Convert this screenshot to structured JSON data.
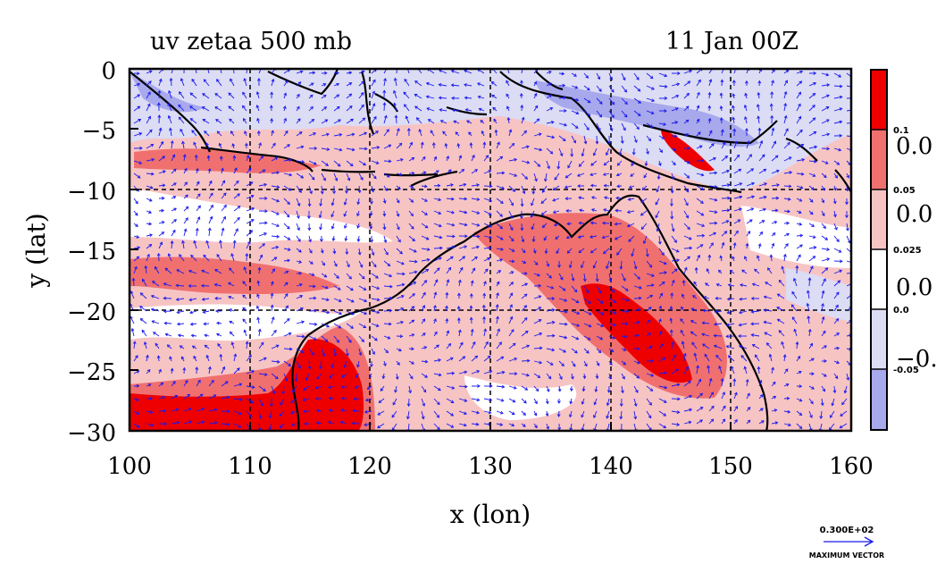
{
  "title_left": "uv zetaa 500 mb",
  "title_right": "11 Jan 00Z",
  "x_axis": {
    "label": "x (lon)",
    "ticks": [
      "100",
      "110",
      "120",
      "130",
      "140",
      "150",
      "160"
    ],
    "range": [
      100,
      160
    ]
  },
  "y_axis": {
    "label": "y (lat)",
    "ticks": [
      "0",
      "−5",
      "−10",
      "−15",
      "−20",
      "−25",
      "−30"
    ],
    "range": [
      -30,
      0
    ]
  },
  "colorbar": {
    "levels": [
      {
        "label": "0.1",
        "color": "#ee0000"
      },
      {
        "label": "0.05",
        "color": "#f07070"
      },
      {
        "label": "0.025",
        "color": "#f7c4c4"
      },
      {
        "label": "0.0",
        "color": "#ffffff"
      },
      {
        "label": "-0.05",
        "color": "#dcdcf4"
      },
      {
        "label": "",
        "color": "#a8a8ec"
      }
    ],
    "large_labels": [
      "0.0",
      "0.0",
      "0.0",
      "−0."
    ]
  },
  "vector_key": {
    "value": "0.300E+02",
    "caption": "MAXIMUM VECTOR"
  },
  "colors": {
    "coast": "#000000",
    "vectors": "#1a1aee",
    "contour": "#e00000",
    "neg_contour": "#8080e0"
  }
}
